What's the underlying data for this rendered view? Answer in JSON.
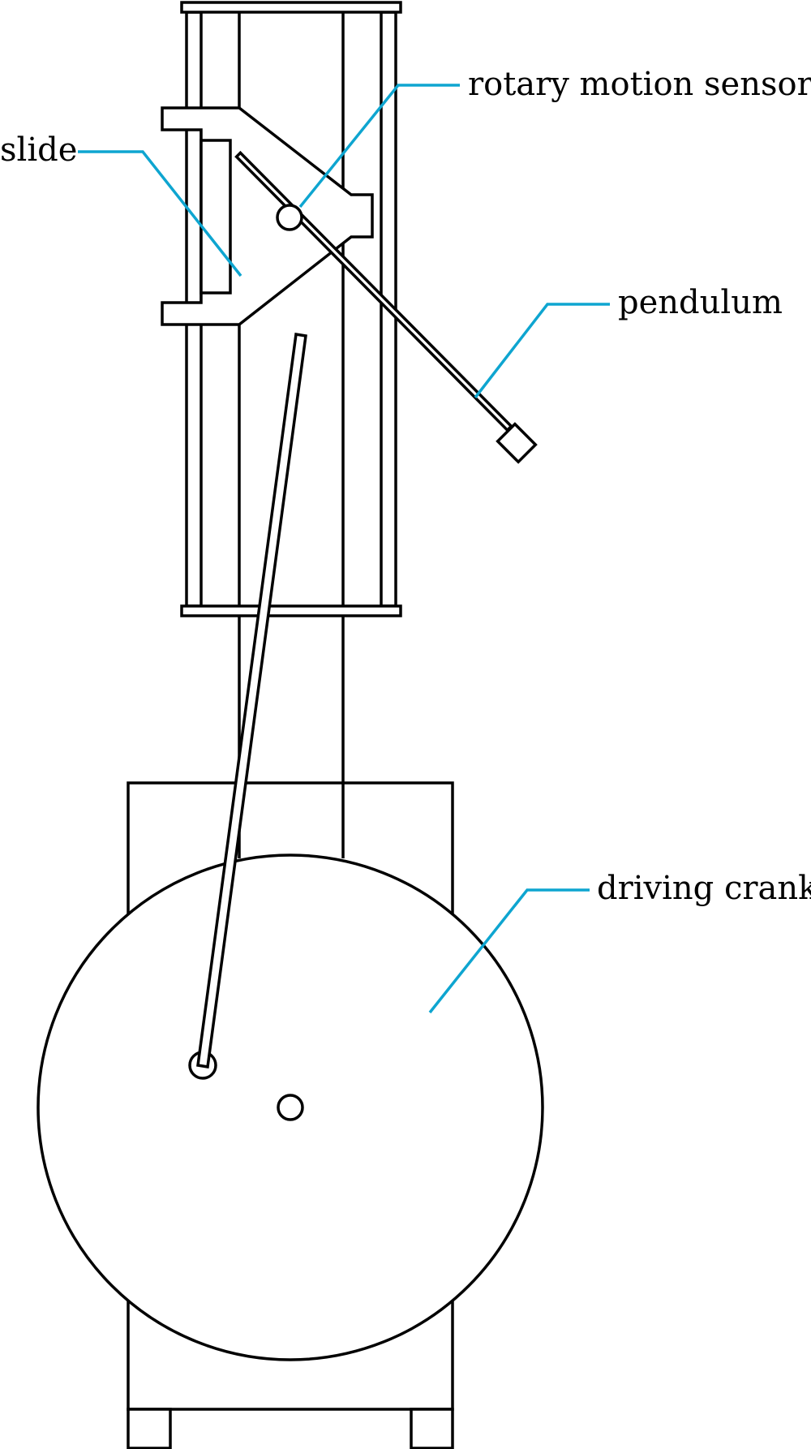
{
  "labels": {
    "rotary_motion_sensor": "rotary motion sensor",
    "slide": "slide",
    "pendulum": "pendulum",
    "driving_crank": "driving crank"
  },
  "colors": {
    "leader": "#0ea5d0",
    "line": "#000000",
    "background": "#ffffff"
  }
}
